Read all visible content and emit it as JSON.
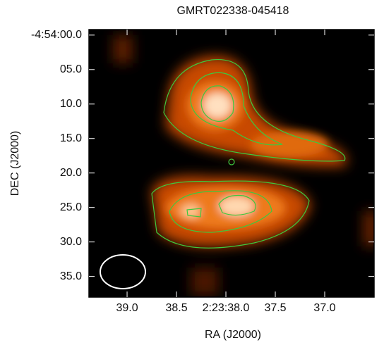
{
  "chart_data": {
    "type": "image",
    "title": "GMRT022338-045418",
    "x_label": "RA (J2000)",
    "y_label": "DEC (J2000)",
    "xlim": [
      39.386,
      36.5
    ],
    "ylim": [
      -0.8,
      38
    ],
    "xticks": [
      {
        "value": 39,
        "label": "39.0"
      },
      {
        "value": 38.5,
        "label": "38.5"
      },
      {
        "value": 38,
        "label": "2:23:38.0"
      },
      {
        "value": 37.5,
        "label": "37.5"
      },
      {
        "value": 37,
        "label": "37.0"
      }
    ],
    "yticks": [
      {
        "value": 0,
        "label": "-4:54:00.0"
      },
      {
        "value": 5,
        "label": "05.0"
      },
      {
        "value": 10,
        "label": "10.0"
      },
      {
        "value": 15,
        "label": "15.0"
      },
      {
        "value": 20,
        "label": "20.0"
      },
      {
        "value": 25,
        "label": "25.0"
      },
      {
        "value": 30,
        "label": "30.0"
      },
      {
        "value": 35,
        "label": "35.0"
      }
    ]
  }
}
